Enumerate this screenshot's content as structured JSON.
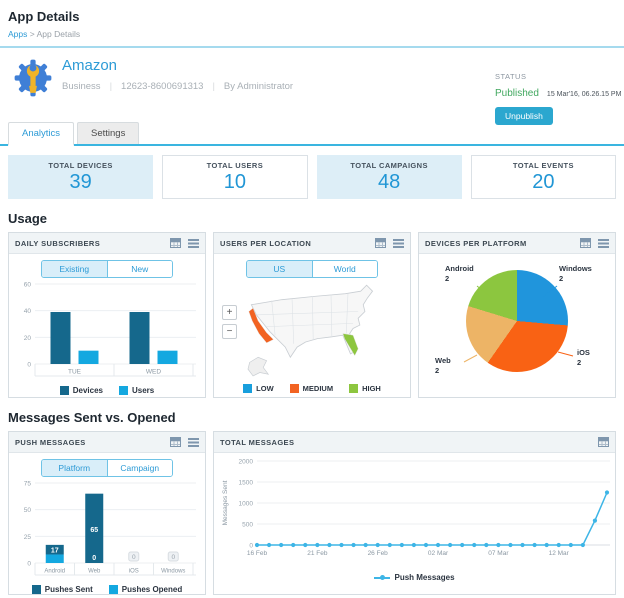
{
  "page": {
    "title": "App Details"
  },
  "breadcrumb": {
    "items": [
      "Apps",
      "App Details"
    ],
    "separator": ">"
  },
  "app": {
    "name": "Amazon",
    "category": "Business",
    "id": "12623-8600691313",
    "by": "By Administrator",
    "status_label": "STATUS",
    "status_value": "Published",
    "status_date": "15 Mar'16, 06.26.15 PM",
    "unpublish_label": "Unpublish"
  },
  "tabs": [
    {
      "label": "Analytics"
    },
    {
      "label": "Settings"
    }
  ],
  "stats": [
    {
      "label": "TOTAL DEVICES",
      "value": "39"
    },
    {
      "label": "TOTAL USERS",
      "value": "10"
    },
    {
      "label": "TOTAL CAMPAIGNS",
      "value": "48"
    },
    {
      "label": "TOTAL EVENTS",
      "value": "20"
    }
  ],
  "sections": {
    "usage": "Usage",
    "messages": "Messages Sent vs. Opened"
  },
  "cards": {
    "daily_subscribers": {
      "title": "DAILY SUBSCRIBERS",
      "toggle": [
        "Existing",
        "New"
      ]
    },
    "users_per_location": {
      "title": "USERS PER LOCATION",
      "toggle": [
        "US",
        "World"
      ],
      "zoom_in": "+",
      "zoom_out": "−",
      "legend": [
        {
          "label": "LOW",
          "color": "#189fdd"
        },
        {
          "label": "MEDIUM",
          "color": "#f26322"
        },
        {
          "label": "HIGH",
          "color": "#8dc63f"
        }
      ]
    },
    "devices_per_platform": {
      "title": "DEVICES PER PLATFORM"
    },
    "push_messages": {
      "title": "PUSH MESSAGES",
      "toggle": [
        "Platform",
        "Campaign"
      ]
    },
    "total_messages": {
      "title": "TOTAL MESSAGES"
    }
  },
  "chart_data": [
    {
      "id": "daily_subscribers",
      "type": "bar",
      "categories": [
        "TUE",
        "WED"
      ],
      "series": [
        {
          "name": "Devices",
          "color": "#15688c",
          "values": [
            39,
            39
          ]
        },
        {
          "name": "Users",
          "color": "#14a8e0",
          "values": [
            10,
            10
          ]
        }
      ],
      "ylim": [
        0,
        60
      ],
      "yticks": [
        0,
        20,
        40,
        60
      ],
      "legend_position": "bottom"
    },
    {
      "id": "users_per_location",
      "type": "map",
      "regions": [
        {
          "name": "California",
          "level": "MEDIUM",
          "color": "#f26322"
        },
        {
          "name": "Florida",
          "level": "HIGH",
          "color": "#8dc63f"
        }
      ]
    },
    {
      "id": "devices_per_platform",
      "type": "pie",
      "slices": [
        {
          "label": "Windows",
          "value": 2,
          "color": "#2095dc",
          "sweep_deg": 95
        },
        {
          "label": "iOS",
          "value": 2,
          "color": "#f96214",
          "sweep_deg": 120
        },
        {
          "label": "Web",
          "value": 2,
          "color": "#edb466",
          "sweep_deg": 72
        },
        {
          "label": "Android",
          "value": 2,
          "color": "#8cc63f",
          "sweep_deg": 73
        }
      ],
      "start_deg": 0
    },
    {
      "id": "push_messages",
      "type": "bar",
      "stacked": true,
      "categories": [
        "Android",
        "Web",
        "iOS",
        "Windows"
      ],
      "series": [
        {
          "name": "Pushes Sent",
          "color": "#15688c",
          "values": [
            17,
            65,
            0,
            0
          ]
        },
        {
          "name": "Pushes Opened",
          "color": "#14a8e0",
          "values": [
            8,
            0,
            0,
            0
          ]
        }
      ],
      "ylim": [
        0,
        75
      ],
      "yticks": [
        0,
        25,
        50,
        75
      ],
      "bar_value_labels": [
        {
          "top": "17"
        },
        {
          "top": "65",
          "bottom": "0"
        },
        {
          "zero": "0"
        },
        {
          "zero": "0"
        }
      ],
      "legend_position": "bottom"
    },
    {
      "id": "total_messages",
      "type": "line",
      "ylabel": "Messages Sent",
      "ylim": [
        0,
        2000
      ],
      "yticks": [
        0,
        500,
        1000,
        1500,
        2000
      ],
      "x_tick_labels": [
        "16 Feb",
        "21 Feb",
        "26 Feb",
        "02 Mar",
        "07 Mar",
        "12 Mar"
      ],
      "x_tick_positions": [
        0,
        5,
        10,
        15,
        20,
        25
      ],
      "series": [
        {
          "name": "Push Messages",
          "color": "#3db5e6",
          "values": [
            0,
            0,
            0,
            0,
            0,
            0,
            0,
            0,
            0,
            0,
            0,
            0,
            0,
            0,
            0,
            0,
            0,
            0,
            0,
            0,
            0,
            0,
            0,
            0,
            0,
            0,
            0,
            0,
            580,
            1250
          ]
        }
      ]
    }
  ],
  "colors": {
    "accent": "#2d9bd6",
    "published_green": "#41a85f",
    "button_cyan": "#2ba7cf",
    "tab_underline": "#3ab5e0"
  }
}
